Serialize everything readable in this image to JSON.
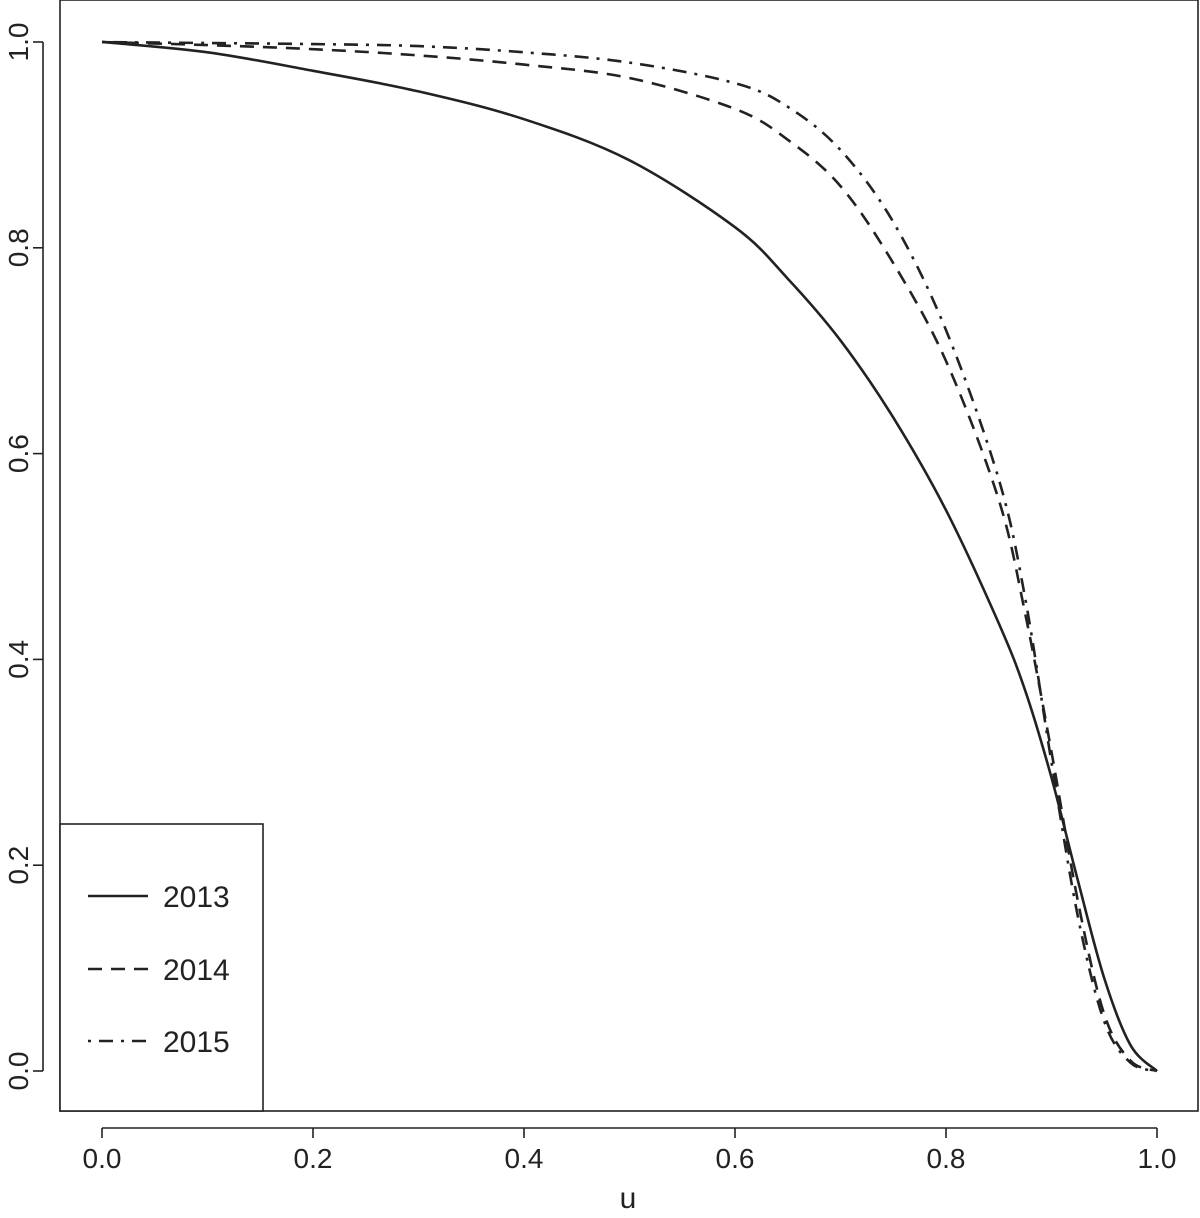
{
  "chart_data": {
    "type": "line",
    "title": "",
    "xlabel": "u",
    "ylabel": "",
    "xlim": [
      0,
      1
    ],
    "ylim": [
      0,
      1
    ],
    "grid": false,
    "legend_position": "bottom-left",
    "x_ticks": [
      "0.0",
      "0.2",
      "0.4",
      "0.6",
      "0.8",
      "1.0"
    ],
    "y_ticks": [
      "0.0",
      "0.2",
      "0.4",
      "0.6",
      "0.8",
      "1.0"
    ],
    "x": [
      0.0,
      0.1,
      0.2,
      0.3,
      0.4,
      0.5,
      0.6,
      0.65,
      0.7,
      0.75,
      0.8,
      0.85,
      0.875,
      0.9,
      0.925,
      0.95,
      0.975,
      1.0
    ],
    "series": [
      {
        "name": "2013",
        "dash": "solid",
        "values": [
          1.0,
          0.99,
          0.972,
          0.952,
          0.925,
          0.885,
          0.82,
          0.77,
          0.71,
          0.635,
          0.545,
          0.435,
          0.37,
          0.285,
          0.185,
          0.09,
          0.025,
          0.0
        ]
      },
      {
        "name": "2014",
        "dash": "dashed",
        "values": [
          1.0,
          0.997,
          0.993,
          0.987,
          0.978,
          0.965,
          0.935,
          0.905,
          0.86,
          0.785,
          0.69,
          0.555,
          0.445,
          0.31,
          0.165,
          0.055,
          0.01,
          0.0
        ]
      },
      {
        "name": "2015",
        "dash": "dashdot",
        "values": [
          1.0,
          0.999,
          0.998,
          0.996,
          0.99,
          0.98,
          0.96,
          0.937,
          0.895,
          0.825,
          0.72,
          0.575,
          0.46,
          0.3,
          0.15,
          0.048,
          0.008,
          0.0
        ]
      }
    ]
  }
}
